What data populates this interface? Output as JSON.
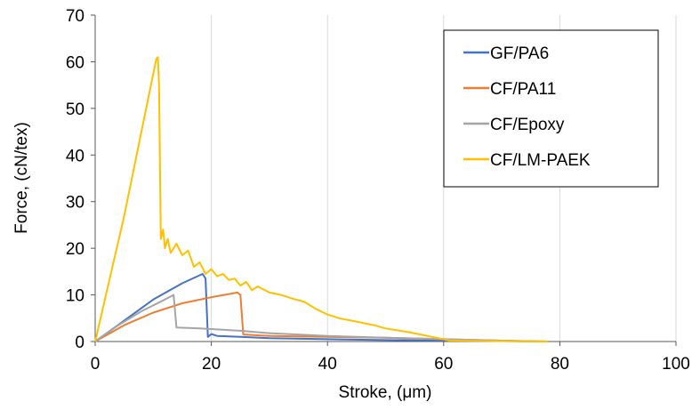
{
  "chart_data": {
    "type": "line",
    "title": "",
    "xlabel": "Stroke, (μm)",
    "ylabel": "Force, (cN/tex)",
    "xlim": [
      0,
      100
    ],
    "ylim": [
      0,
      70
    ],
    "xticks": [
      "0",
      "20",
      "40",
      "60",
      "80",
      "100"
    ],
    "yticks": [
      "0",
      "10",
      "20",
      "30",
      "40",
      "50",
      "60",
      "70"
    ],
    "grid": "vertical",
    "legend_position": "top-right",
    "series": [
      {
        "name": "GF/PA6",
        "color": "#4472C4",
        "points": [
          [
            0,
            0
          ],
          [
            5,
            4.5
          ],
          [
            10,
            9
          ],
          [
            15,
            12.5
          ],
          [
            18.5,
            14.5
          ],
          [
            19,
            13.5
          ],
          [
            19.4,
            1
          ],
          [
            20,
            1.6
          ],
          [
            21,
            1.2
          ],
          [
            25,
            1.0
          ],
          [
            30,
            0.7
          ],
          [
            40,
            0.5
          ],
          [
            50,
            0.3
          ],
          [
            60,
            0.2
          ],
          [
            70,
            0.1
          ],
          [
            78,
            0
          ]
        ]
      },
      {
        "name": "CF/PA11",
        "color": "#ED7D31",
        "points": [
          [
            0,
            0
          ],
          [
            5,
            3.5
          ],
          [
            10,
            6.2
          ],
          [
            15,
            8.2
          ],
          [
            20,
            9.5
          ],
          [
            24.5,
            10.5
          ],
          [
            25,
            10
          ],
          [
            25.5,
            1.5
          ],
          [
            30,
            1.2
          ],
          [
            40,
            1.0
          ],
          [
            50,
            0.8
          ],
          [
            60,
            0.5
          ],
          [
            70,
            0.2
          ],
          [
            78,
            0
          ]
        ]
      },
      {
        "name": "CF/Epoxy",
        "color": "#A5A5A5",
        "points": [
          [
            0,
            0
          ],
          [
            4,
            3.5
          ],
          [
            8,
            6.5
          ],
          [
            12,
            9
          ],
          [
            13.5,
            10
          ],
          [
            14,
            3
          ],
          [
            18,
            2.8
          ],
          [
            25,
            2.3
          ],
          [
            30,
            1.8
          ],
          [
            40,
            1.2
          ],
          [
            50,
            0.8
          ],
          [
            60,
            0.5
          ],
          [
            70,
            0.2
          ],
          [
            77,
            0
          ]
        ]
      },
      {
        "name": "CF/LM-PAEK",
        "color": "#FFC000",
        "points": [
          [
            0,
            0
          ],
          [
            5,
            27
          ],
          [
            10.5,
            60.5
          ],
          [
            10.8,
            61
          ],
          [
            11,
            55
          ],
          [
            11.3,
            22
          ],
          [
            11.7,
            24
          ],
          [
            12,
            20
          ],
          [
            12.5,
            22
          ],
          [
            13,
            19
          ],
          [
            14,
            21
          ],
          [
            15,
            18.5
          ],
          [
            16,
            19.5
          ],
          [
            17,
            16
          ],
          [
            18,
            17
          ],
          [
            19,
            14.5
          ],
          [
            20,
            15.5
          ],
          [
            21,
            14
          ],
          [
            22,
            14.5
          ],
          [
            23,
            13.2
          ],
          [
            24,
            13.5
          ],
          [
            25,
            12
          ],
          [
            26,
            12.8
          ],
          [
            27,
            11
          ],
          [
            28,
            11.8
          ],
          [
            30,
            10.5
          ],
          [
            32,
            10
          ],
          [
            34,
            9.2
          ],
          [
            36,
            8.5
          ],
          [
            38,
            7
          ],
          [
            40,
            5.8
          ],
          [
            42,
            5
          ],
          [
            44,
            4.5
          ],
          [
            46,
            4
          ],
          [
            48,
            3.5
          ],
          [
            50,
            2.8
          ],
          [
            52,
            2.4
          ],
          [
            54,
            2
          ],
          [
            56,
            1.5
          ],
          [
            58,
            1
          ],
          [
            60,
            0.5
          ],
          [
            61,
            0.2
          ],
          [
            62,
            0.2
          ],
          [
            70,
            0.1
          ],
          [
            78,
            0
          ]
        ]
      }
    ]
  }
}
